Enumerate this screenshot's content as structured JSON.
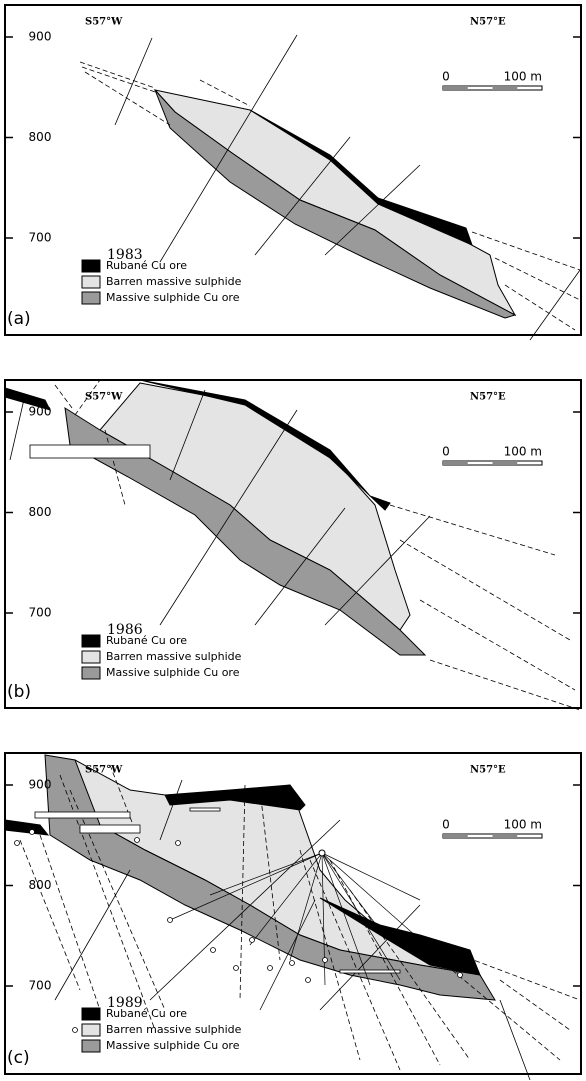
{
  "panels": [
    {
      "label": "(a)",
      "year": "1983",
      "direction_left": "S57°W",
      "direction_right": "N57°E",
      "elevations": [
        900,
        800,
        700
      ],
      "scale": {
        "start": "0",
        "end": "100 m"
      },
      "legend": [
        "Rubané Cu ore",
        "Barren massive sulphide",
        "Massive sulphide Cu ore"
      ]
    },
    {
      "label": "(b)",
      "year": "1986",
      "direction_left": "S57°W",
      "direction_right": "N57°E",
      "elevations": [
        900,
        800,
        700
      ],
      "scale": {
        "start": "0",
        "end": "100 m"
      },
      "legend": [
        "Rubané Cu ore",
        "Barren massive sulphide",
        "Massive sulphide Cu ore"
      ]
    },
    {
      "label": "(c)",
      "year": "1989",
      "direction_left": "S57°W",
      "direction_right": "N57°E",
      "elevations": [
        900,
        800,
        700
      ],
      "scale": {
        "start": "0",
        "end": "100 m"
      },
      "legend": [
        "Rubané Cu ore",
        "Barren massive sulphide",
        "Massive sulphide Cu ore"
      ]
    }
  ]
}
